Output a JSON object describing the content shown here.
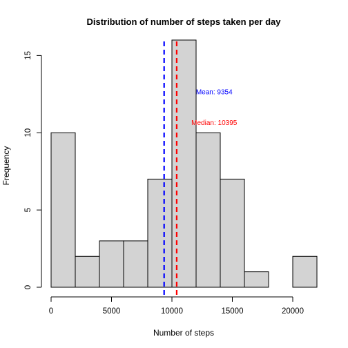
{
  "chart_data": {
    "type": "bar",
    "title": "Distribution of number of steps taken per day",
    "xlabel": "Number of steps",
    "ylabel": "Frequency",
    "bins": [
      {
        "x0": 0,
        "x1": 2000,
        "count": 10
      },
      {
        "x0": 2000,
        "x1": 4000,
        "count": 2
      },
      {
        "x0": 4000,
        "x1": 6000,
        "count": 3
      },
      {
        "x0": 6000,
        "x1": 8000,
        "count": 3
      },
      {
        "x0": 8000,
        "x1": 10000,
        "count": 7
      },
      {
        "x0": 10000,
        "x1": 12000,
        "count": 16
      },
      {
        "x0": 12000,
        "x1": 14000,
        "count": 10
      },
      {
        "x0": 14000,
        "x1": 16000,
        "count": 7
      },
      {
        "x0": 16000,
        "x1": 18000,
        "count": 1
      },
      {
        "x0": 18000,
        "x1": 20000,
        "count": 0
      },
      {
        "x0": 20000,
        "x1": 22000,
        "count": 2
      }
    ],
    "xlim": [
      0,
      22000
    ],
    "ylim": [
      0,
      16
    ],
    "xticks": [
      0,
      5000,
      10000,
      15000,
      20000
    ],
    "xtick_labels": [
      "0",
      "5000",
      "10000",
      "15000",
      "20000"
    ],
    "yticks": [
      0,
      5,
      10,
      15
    ],
    "ytick_labels": [
      "0",
      "5",
      "10",
      "15"
    ],
    "bar_fill": "#d3d3d3",
    "bar_stroke": "#000000",
    "grid": false,
    "reference_lines": [
      {
        "name": "mean",
        "value": 9354,
        "color": "#0000ff",
        "label": "Mean: 9354",
        "label_at": {
          "x": 13500,
          "y": 12.5
        }
      },
      {
        "name": "median",
        "value": 10395,
        "color": "#ff0000",
        "label": "Median: 10395",
        "label_at": {
          "x": 13500,
          "y": 10.5
        }
      }
    ]
  }
}
